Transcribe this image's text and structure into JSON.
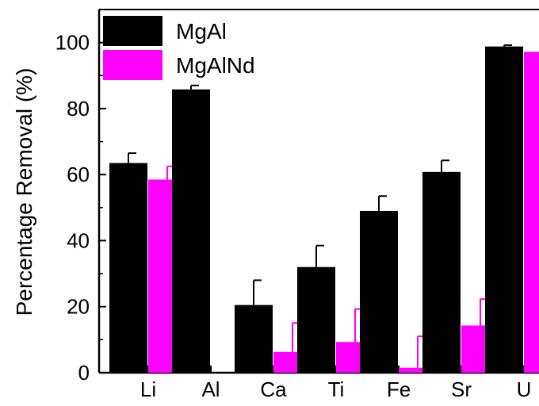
{
  "chart_data": {
    "type": "bar",
    "title": "",
    "xlabel": "",
    "ylabel": "Percentage Removal (%)",
    "categories": [
      "Li",
      "Al",
      "Ca",
      "Ti",
      "Fe",
      "Sr",
      "U"
    ],
    "ylim": [
      0,
      110
    ],
    "yticks": [
      0,
      20,
      40,
      60,
      80,
      100
    ],
    "legend_position": "top-left",
    "series": [
      {
        "name": "MgAl",
        "color": "#000000",
        "values": [
          63.5,
          85.8,
          20.5,
          32.0,
          49.0,
          60.8,
          98.8
        ],
        "errors": [
          3.0,
          1.2,
          7.5,
          6.5,
          4.5,
          3.5,
          0.4
        ]
      },
      {
        "name": "MgAlNd",
        "color": "#ff00ff",
        "values": [
          58.5,
          null,
          6.3,
          9.3,
          1.5,
          14.3,
          97.2
        ],
        "errors": [
          4.0,
          null,
          8.8,
          10.0,
          9.5,
          8.0,
          0.4
        ]
      }
    ]
  }
}
